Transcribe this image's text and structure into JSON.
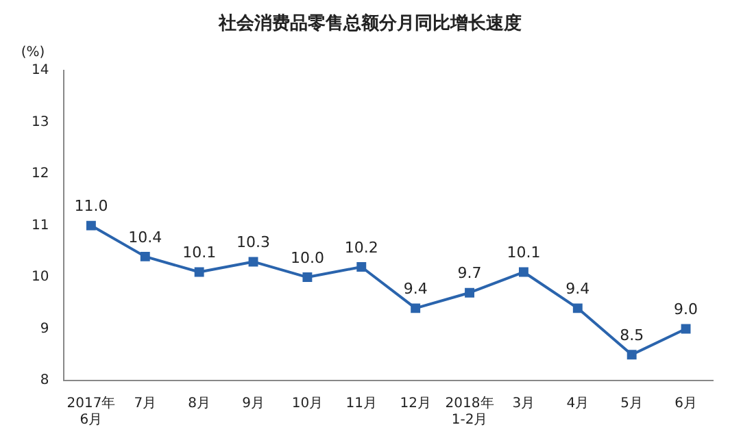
{
  "chart_data": {
    "type": "line",
    "title": "社会消费品零售总额分月同比增长速度",
    "ylabel": "(%)",
    "categories": [
      "2017年\n6月",
      "7月",
      "8月",
      "9月",
      "10月",
      "11月",
      "12月",
      "2018年\n1-2月",
      "3月",
      "4月",
      "5月",
      "6月"
    ],
    "series": [
      {
        "color": "#2a64ad",
        "values": [
          11.0,
          10.4,
          10.1,
          10.3,
          10.0,
          10.2,
          9.4,
          9.7,
          10.1,
          9.4,
          8.5,
          9.0
        ],
        "value_labels": [
          "11.0",
          "10.4",
          "10.1",
          "10.3",
          "10.0",
          "10.2",
          "9.4",
          "9.7",
          "10.1",
          "9.4",
          "8.5",
          "9.0"
        ]
      }
    ],
    "ylim": [
      8,
      14
    ],
    "yticks": [
      8,
      9,
      10,
      11,
      12,
      13,
      14
    ],
    "grid": false,
    "legend": false,
    "marker": "square",
    "line_style": "solid"
  }
}
